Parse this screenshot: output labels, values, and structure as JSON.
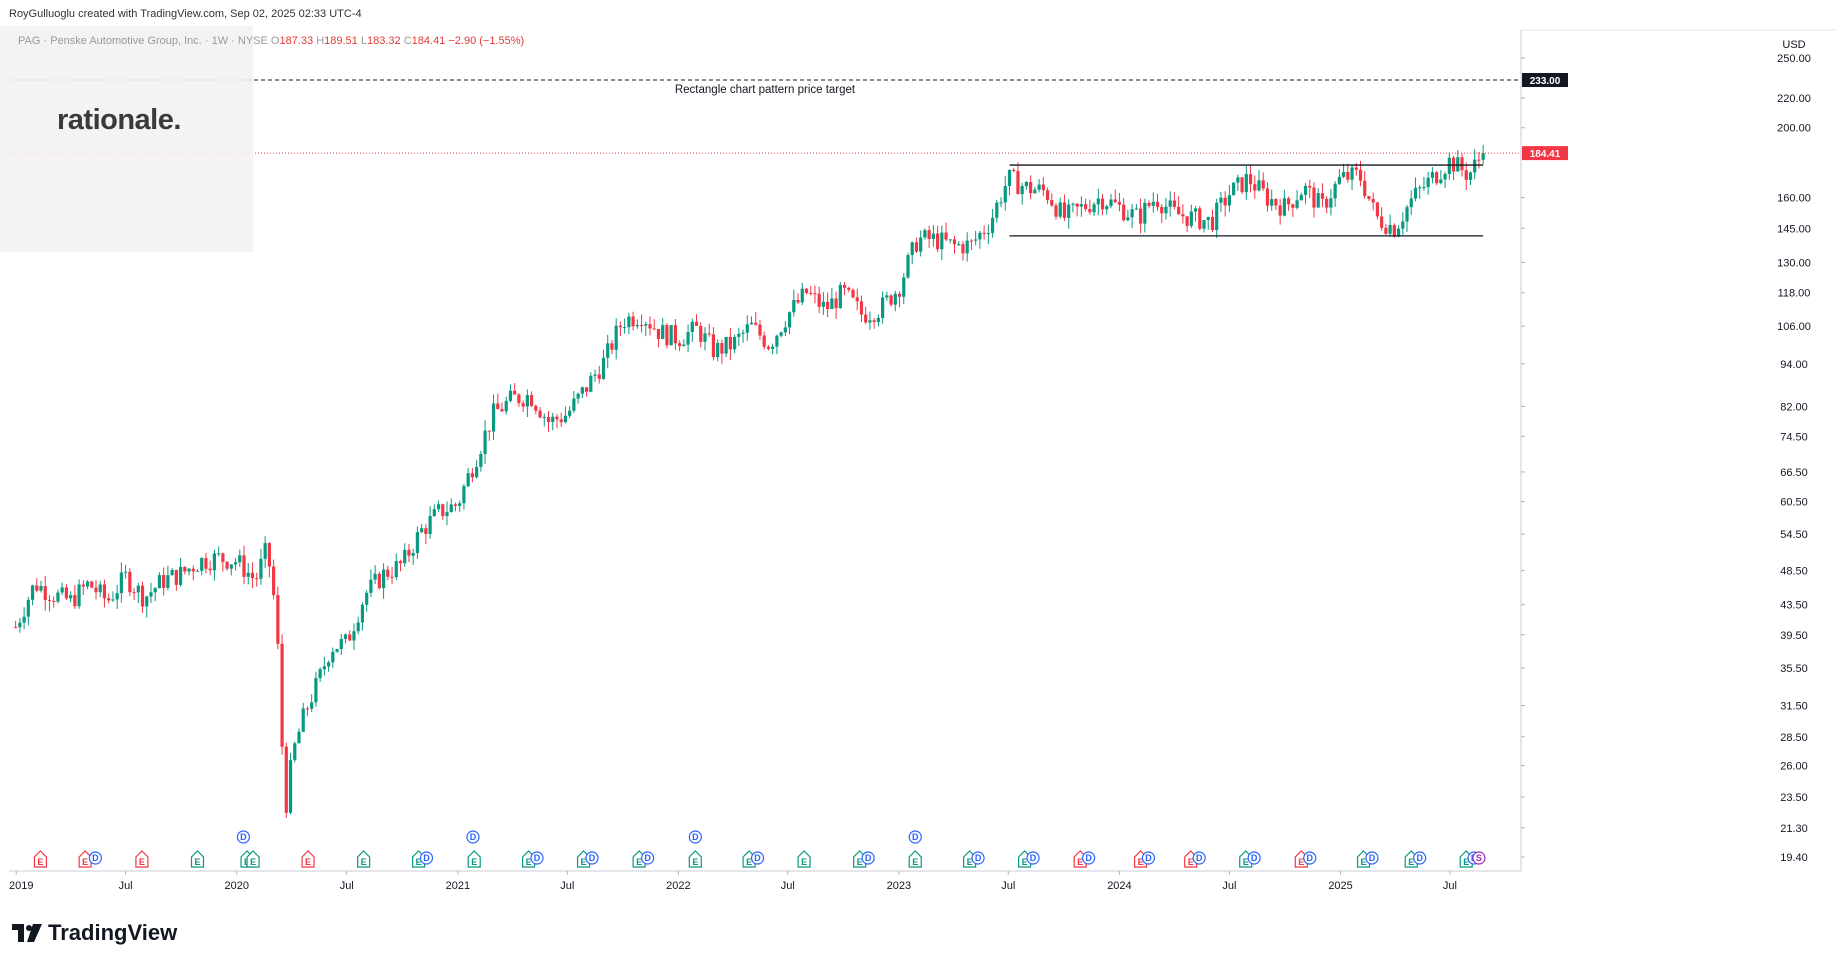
{
  "header": {
    "credit": "RoyGulluoglu created with TradingView.com, Sep 02, 2025 02:33 UTC-4"
  },
  "symbol": {
    "name": "PAG · Penske Automotive Group, Inc. · 1W · NYSE",
    "open_label": "O",
    "open": "187.33",
    "high_label": "H",
    "high": "189.51",
    "low_label": "L",
    "low": "183.32",
    "close_label": "C",
    "close": "184.41",
    "change": "−2.90 (−1.55%)"
  },
  "watermark": {
    "text": "rationale."
  },
  "footer": {
    "brand": "TradingView"
  },
  "colors": {
    "up": "#089981",
    "down": "#f23645",
    "price_line": "#f23645",
    "dividend": "#2962ff",
    "earnings_up": "#089981",
    "earnings_down": "#f23645"
  },
  "chart_data": {
    "type": "candlestick",
    "currency": "USD",
    "scale": "log",
    "y_ticks": [
      "250.00",
      "220.00",
      "200.00",
      "160.00",
      "145.00",
      "130.00",
      "118.00",
      "106.00",
      "94.00",
      "82.00",
      "74.50",
      "66.50",
      "60.50",
      "54.50",
      "48.50",
      "43.50",
      "39.50",
      "35.50",
      "31.50",
      "28.50",
      "26.00",
      "23.50",
      "21.30",
      "19.40"
    ],
    "x_ticks": [
      "2019",
      "Jul",
      "2020",
      "Jul",
      "2021",
      "Jul",
      "2022",
      "Jul",
      "2023",
      "Jul",
      "2024",
      "Jul",
      "2025",
      "Jul"
    ],
    "x_tick_dates": [
      "2019-01-01",
      "2019-07-01",
      "2020-01-01",
      "2020-07-01",
      "2021-01-01",
      "2021-07-01",
      "2022-01-01",
      "2022-07-01",
      "2023-01-01",
      "2023-07-01",
      "2024-01-01",
      "2024-07-01",
      "2025-01-01",
      "2025-07-01"
    ],
    "last_price": {
      "value": 184.41,
      "label": "184.41"
    },
    "target": {
      "value": 233.0,
      "label": "233.00",
      "annotation": "Rectangle chart pattern price target"
    },
    "rectangle": {
      "top": 177.5,
      "bottom": 141.5,
      "start": "2023-07-03",
      "end": "2025-08-25"
    },
    "weekly_close": [
      [
        "2018-12-31",
        40.5
      ],
      [
        "2019-02-01",
        46.5
      ],
      [
        "2019-03-01",
        45.0
      ],
      [
        "2019-04-01",
        44.0
      ],
      [
        "2019-05-01",
        46.5
      ],
      [
        "2019-06-01",
        44.0
      ],
      [
        "2019-07-01",
        47.5
      ],
      [
        "2019-08-01",
        44.5
      ],
      [
        "2019-09-01",
        47.0
      ],
      [
        "2019-10-01",
        48.0
      ],
      [
        "2019-11-01",
        50.0
      ],
      [
        "2019-12-01",
        50.5
      ],
      [
        "2020-01-01",
        50.0
      ],
      [
        "2020-02-01",
        47.0
      ],
      [
        "2020-02-20",
        52.0
      ],
      [
        "2020-03-06",
        42.0
      ],
      [
        "2020-03-20",
        22.0
      ],
      [
        "2020-04-03",
        27.0
      ],
      [
        "2020-04-24",
        31.0
      ],
      [
        "2020-05-15",
        34.0
      ],
      [
        "2020-06-05",
        38.0
      ],
      [
        "2020-07-01",
        38.5
      ],
      [
        "2020-08-01",
        45.0
      ],
      [
        "2020-09-01",
        48.0
      ],
      [
        "2020-10-01",
        49.5
      ],
      [
        "2020-11-01",
        55.0
      ],
      [
        "2020-12-01",
        58.5
      ],
      [
        "2021-01-01",
        60.0
      ],
      [
        "2021-02-01",
        70.0
      ],
      [
        "2021-03-01",
        80.0
      ],
      [
        "2021-04-01",
        84.0
      ],
      [
        "2021-05-01",
        85.0
      ],
      [
        "2021-06-01",
        78.0
      ],
      [
        "2021-07-01",
        80.0
      ],
      [
        "2021-08-01",
        87.0
      ],
      [
        "2021-09-01",
        95.0
      ],
      [
        "2021-10-01",
        108.0
      ],
      [
        "2021-11-01",
        110.0
      ],
      [
        "2021-12-01",
        104.0
      ],
      [
        "2022-01-01",
        102.0
      ],
      [
        "2022-02-01",
        105.0
      ],
      [
        "2022-03-01",
        98.0
      ],
      [
        "2022-04-01",
        100.0
      ],
      [
        "2022-05-01",
        106.0
      ],
      [
        "2022-06-01",
        100.0
      ],
      [
        "2022-07-01",
        110.0
      ],
      [
        "2022-08-01",
        118.0
      ],
      [
        "2022-09-01",
        112.0
      ],
      [
        "2022-10-01",
        118.0
      ],
      [
        "2022-11-01",
        110.0
      ],
      [
        "2022-12-01",
        112.0
      ],
      [
        "2023-01-01",
        120.0
      ],
      [
        "2023-02-01",
        140.0
      ],
      [
        "2023-03-01",
        140.0
      ],
      [
        "2023-04-01",
        137.0
      ],
      [
        "2023-05-01",
        137.5
      ],
      [
        "2023-06-01",
        148.0
      ],
      [
        "2023-07-01",
        170.0
      ],
      [
        "2023-08-01",
        165.0
      ],
      [
        "2023-09-01",
        163.0
      ],
      [
        "2023-10-01",
        150.0
      ],
      [
        "2023-11-01",
        155.0
      ],
      [
        "2023-12-01",
        160.0
      ],
      [
        "2024-01-01",
        155.0
      ],
      [
        "2024-02-01",
        150.0
      ],
      [
        "2024-03-01",
        160.0
      ],
      [
        "2024-04-01",
        152.0
      ],
      [
        "2024-05-01",
        150.0
      ],
      [
        "2024-06-01",
        148.0
      ],
      [
        "2024-07-01",
        162.0
      ],
      [
        "2024-08-01",
        170.0
      ],
      [
        "2024-09-01",
        160.0
      ],
      [
        "2024-10-01",
        155.0
      ],
      [
        "2024-11-01",
        165.0
      ],
      [
        "2024-12-01",
        155.0
      ],
      [
        "2025-01-01",
        170.0
      ],
      [
        "2025-02-01",
        172.0
      ],
      [
        "2025-03-01",
        150.0
      ],
      [
        "2025-04-01",
        145.0
      ],
      [
        "2025-05-01",
        160.0
      ],
      [
        "2025-06-01",
        170.0
      ],
      [
        "2025-07-01",
        180.0
      ],
      [
        "2025-08-01",
        172.0
      ],
      [
        "2025-08-25",
        184.41
      ]
    ],
    "events": [
      {
        "date": "2019-02-10",
        "type": "E",
        "tone": "down"
      },
      {
        "date": "2019-04-25",
        "type": "E",
        "tone": "down"
      },
      {
        "date": "2019-05-12",
        "type": "D",
        "tone": "div"
      },
      {
        "date": "2019-07-28",
        "type": "E",
        "tone": "down"
      },
      {
        "date": "2019-10-28",
        "type": "E",
        "tone": "up"
      },
      {
        "date": "2020-01-12",
        "type": "D",
        "tone": "div",
        "raised": true
      },
      {
        "date": "2020-01-18",
        "type": "E",
        "tone": "up"
      },
      {
        "date": "2020-01-28",
        "type": "E",
        "tone": "up"
      },
      {
        "date": "2020-04-28",
        "type": "E",
        "tone": "down"
      },
      {
        "date": "2020-07-29",
        "type": "E",
        "tone": "up"
      },
      {
        "date": "2020-10-28",
        "type": "E",
        "tone": "up"
      },
      {
        "date": "2020-11-10",
        "type": "D",
        "tone": "div"
      },
      {
        "date": "2021-01-26",
        "type": "D",
        "tone": "div",
        "raised": true
      },
      {
        "date": "2021-01-28",
        "type": "E",
        "tone": "up"
      },
      {
        "date": "2021-04-28",
        "type": "E",
        "tone": "up"
      },
      {
        "date": "2021-05-12",
        "type": "D",
        "tone": "div"
      },
      {
        "date": "2021-07-28",
        "type": "E",
        "tone": "up"
      },
      {
        "date": "2021-08-11",
        "type": "D",
        "tone": "div"
      },
      {
        "date": "2021-10-28",
        "type": "E",
        "tone": "up"
      },
      {
        "date": "2021-11-11",
        "type": "D",
        "tone": "div"
      },
      {
        "date": "2022-01-29",
        "type": "D",
        "tone": "div",
        "raised": true
      },
      {
        "date": "2022-01-29",
        "type": "E",
        "tone": "up"
      },
      {
        "date": "2022-04-28",
        "type": "E",
        "tone": "up"
      },
      {
        "date": "2022-05-12",
        "type": "D",
        "tone": "div"
      },
      {
        "date": "2022-07-28",
        "type": "E",
        "tone": "up"
      },
      {
        "date": "2022-10-28",
        "type": "E",
        "tone": "up"
      },
      {
        "date": "2022-11-11",
        "type": "D",
        "tone": "div"
      },
      {
        "date": "2023-01-28",
        "type": "D",
        "tone": "div",
        "raised": true
      },
      {
        "date": "2023-01-28",
        "type": "E",
        "tone": "up"
      },
      {
        "date": "2023-04-28",
        "type": "E",
        "tone": "up"
      },
      {
        "date": "2023-05-12",
        "type": "D",
        "tone": "div"
      },
      {
        "date": "2023-07-28",
        "type": "E",
        "tone": "up"
      },
      {
        "date": "2023-08-11",
        "type": "D",
        "tone": "div"
      },
      {
        "date": "2023-10-28",
        "type": "E",
        "tone": "down"
      },
      {
        "date": "2023-11-11",
        "type": "D",
        "tone": "div"
      },
      {
        "date": "2024-02-05",
        "type": "E",
        "tone": "down"
      },
      {
        "date": "2024-02-18",
        "type": "D",
        "tone": "div"
      },
      {
        "date": "2024-04-28",
        "type": "E",
        "tone": "down"
      },
      {
        "date": "2024-05-12",
        "type": "D",
        "tone": "div"
      },
      {
        "date": "2024-07-28",
        "type": "E",
        "tone": "up"
      },
      {
        "date": "2024-08-11",
        "type": "D",
        "tone": "div"
      },
      {
        "date": "2024-10-28",
        "type": "E",
        "tone": "down"
      },
      {
        "date": "2024-11-11",
        "type": "D",
        "tone": "div"
      },
      {
        "date": "2025-02-08",
        "type": "E",
        "tone": "up"
      },
      {
        "date": "2025-02-22",
        "type": "D",
        "tone": "div"
      },
      {
        "date": "2025-04-28",
        "type": "E",
        "tone": "up"
      },
      {
        "date": "2025-05-12",
        "type": "D",
        "tone": "div"
      },
      {
        "date": "2025-07-28",
        "type": "E",
        "tone": "up"
      },
      {
        "date": "2025-08-10",
        "type": "D",
        "tone": "div"
      },
      {
        "date": "2025-08-18",
        "type": "D",
        "tone": "split"
      }
    ]
  }
}
